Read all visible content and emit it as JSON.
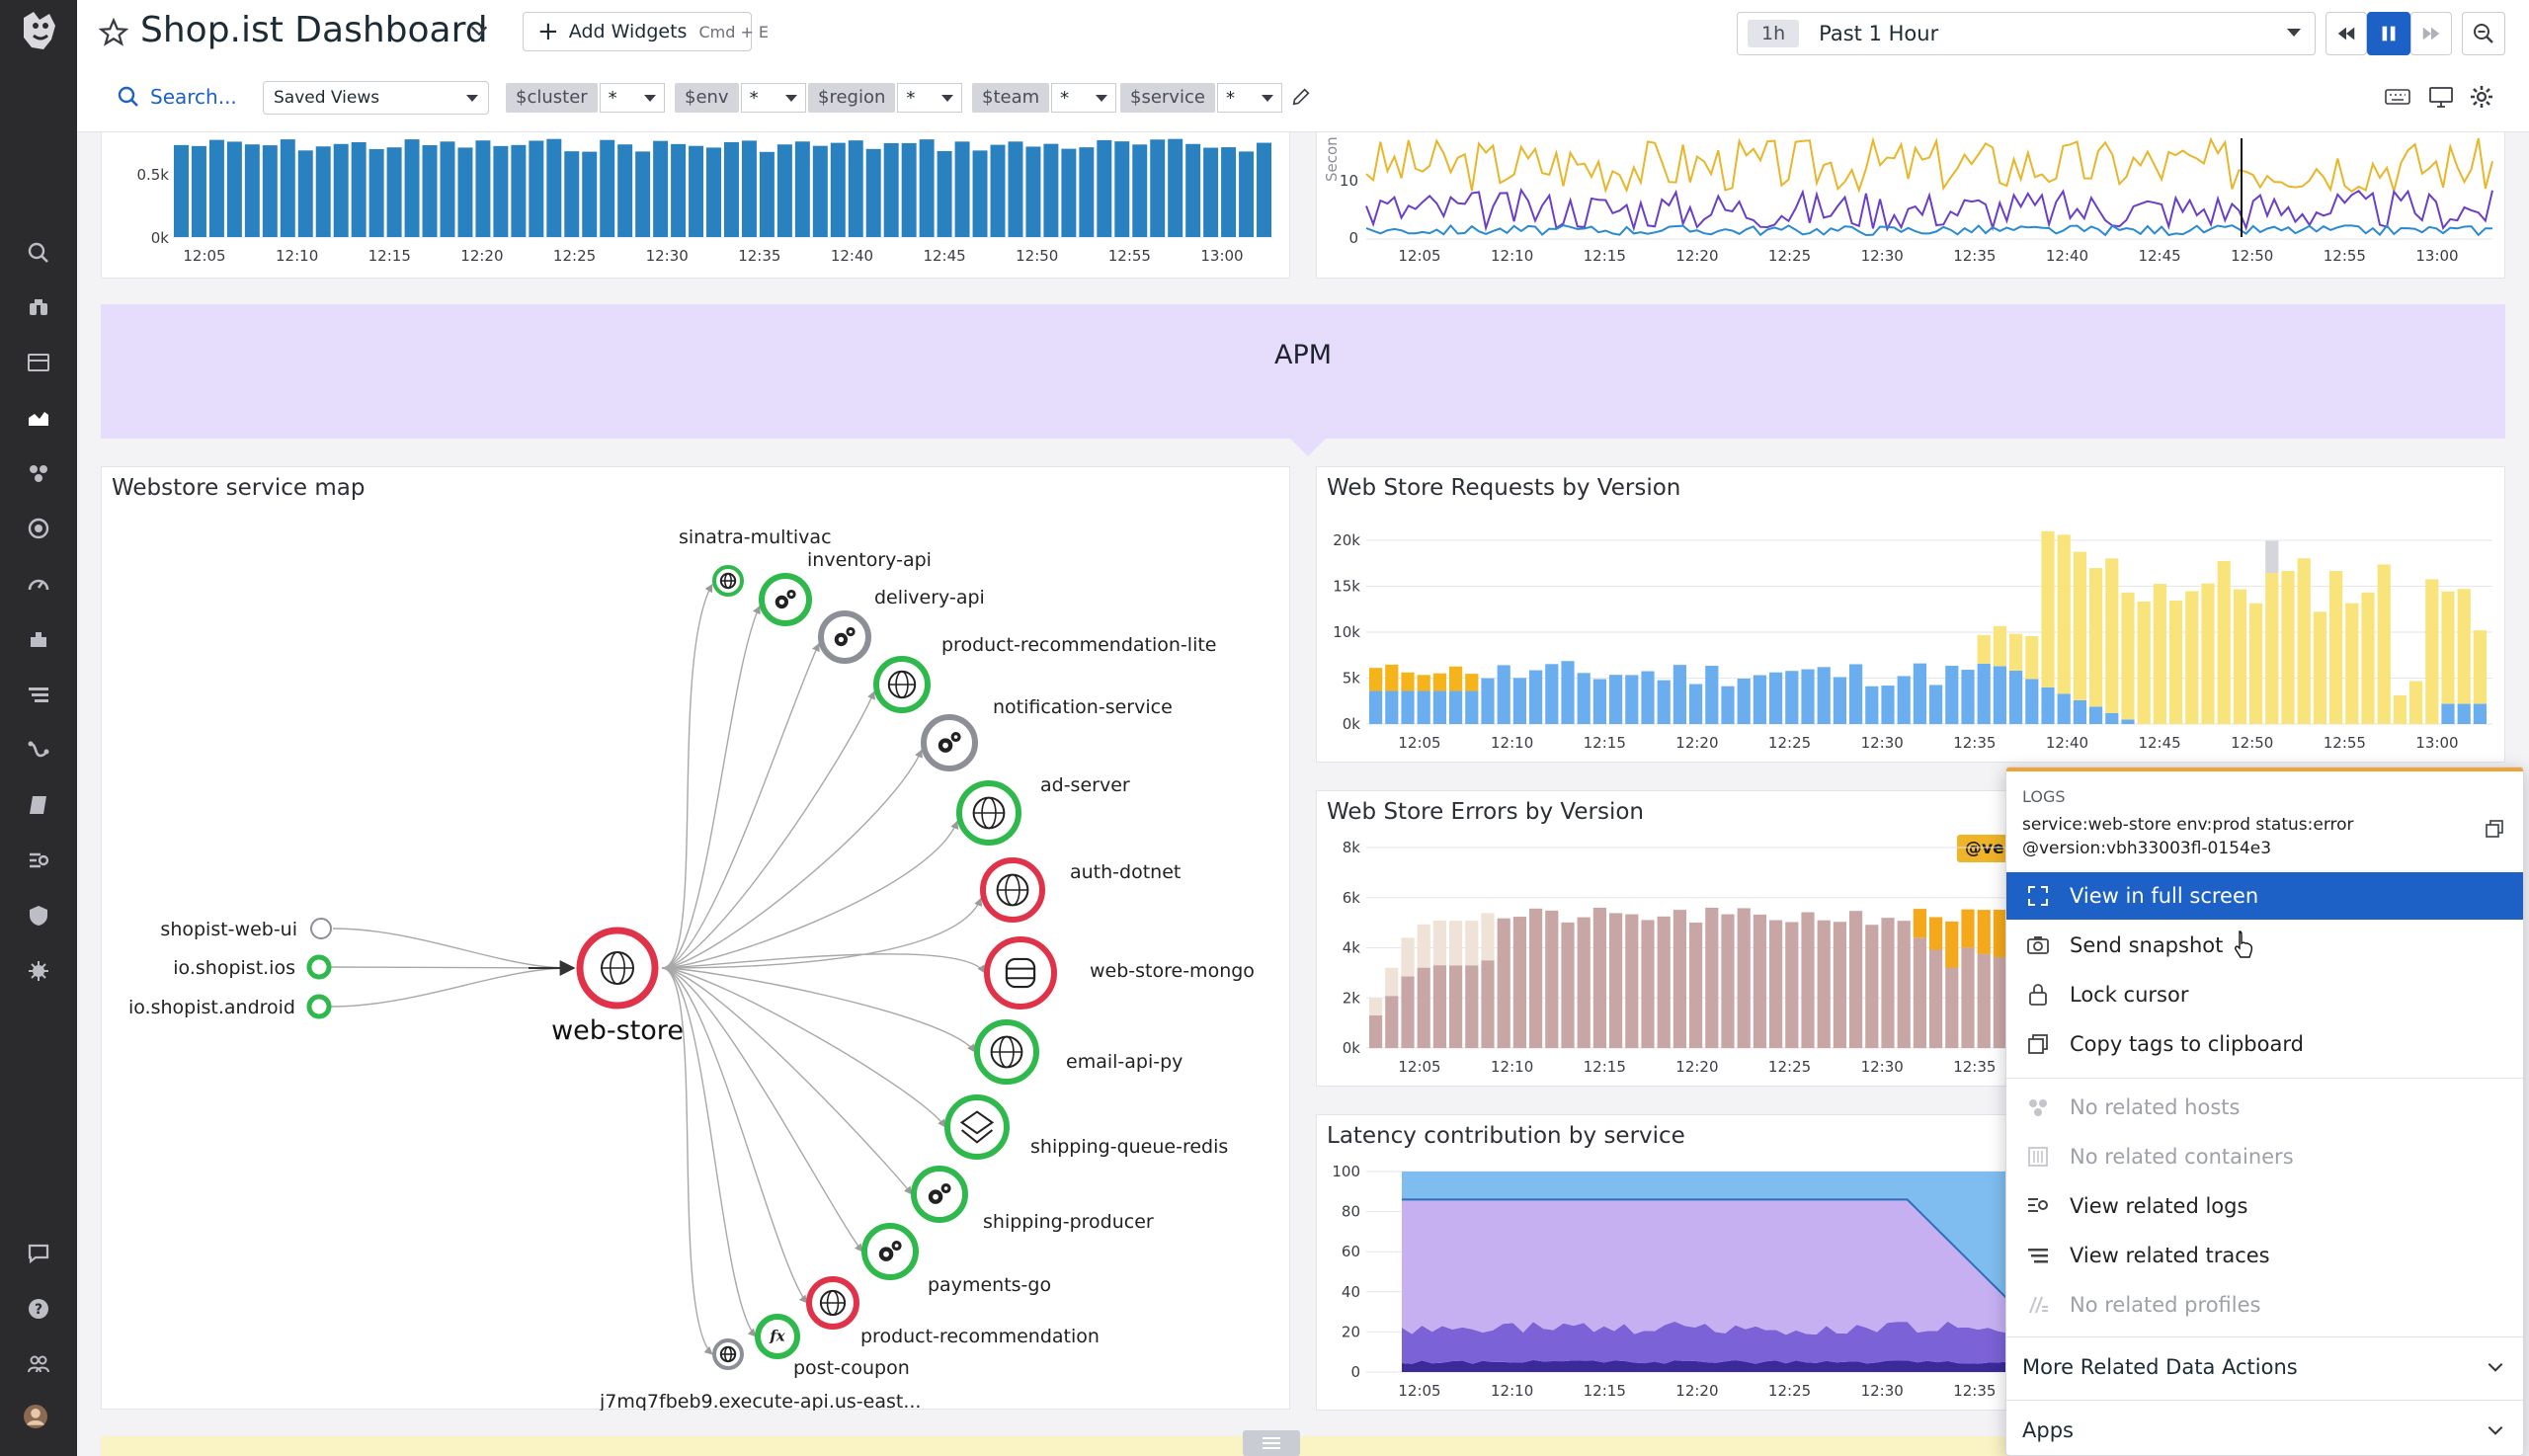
{
  "header": {
    "title": "Shop.ist Dashboard",
    "add_widgets": "Add Widgets",
    "add_widgets_shortcut": "Cmd + E",
    "time_badge": "1h",
    "time_label": "Past 1 Hour",
    "search_placeholder": "Search...",
    "saved_views": "Saved Views"
  },
  "template_vars": [
    {
      "name": "$cluster",
      "value": "*"
    },
    {
      "name": "$env",
      "value": "*"
    },
    {
      "name": "$region",
      "value": "*"
    },
    {
      "name": "$team",
      "value": "*"
    },
    {
      "name": "$service",
      "value": "*"
    }
  ],
  "apm_group": {
    "title": "APM"
  },
  "time_ticks": [
    "12:05",
    "12:10",
    "12:15",
    "12:20",
    "12:25",
    "12:30",
    "12:35",
    "12:40",
    "12:45",
    "12:50",
    "12:55",
    "13:00"
  ],
  "top_left_chart": {
    "yticks": [
      "0.5k",
      "0k"
    ]
  },
  "top_right_chart": {
    "yticks": [
      "10",
      "0"
    ],
    "ylabel": "Secon"
  },
  "service_map": {
    "title": "Webstore service map",
    "center": "web-store",
    "upstream": [
      "shopist-web-ui",
      "io.shopist.ios",
      "io.shopist.android"
    ],
    "downstream": [
      {
        "name": "sinatra-multivac",
        "icon": "globe",
        "status": "ok"
      },
      {
        "name": "inventory-api",
        "icon": "gears",
        "status": "ok"
      },
      {
        "name": "delivery-api",
        "icon": "gears",
        "status": "neutral"
      },
      {
        "name": "product-recommendation-lite",
        "icon": "globe",
        "status": "ok"
      },
      {
        "name": "notification-service",
        "icon": "gears",
        "status": "neutral"
      },
      {
        "name": "ad-server",
        "icon": "globe",
        "status": "ok"
      },
      {
        "name": "auth-dotnet",
        "icon": "globe",
        "status": "error"
      },
      {
        "name": "web-store-mongo",
        "icon": "database",
        "status": "error"
      },
      {
        "name": "email-api-py",
        "icon": "globe",
        "status": "ok"
      },
      {
        "name": "shipping-queue-redis",
        "icon": "layers",
        "status": "ok"
      },
      {
        "name": "shipping-producer",
        "icon": "gears",
        "status": "ok"
      },
      {
        "name": "payments-go",
        "icon": "gears",
        "status": "ok"
      },
      {
        "name": "product-recommendation",
        "icon": "globe",
        "status": "error"
      },
      {
        "name": "post-coupon",
        "icon": "function",
        "status": "ok"
      },
      {
        "name": "j7mq7fbeb9.execute-api.us-east...",
        "icon": "globe",
        "status": "neutral"
      }
    ]
  },
  "requests_chart": {
    "title": "Web Store Requests by Version",
    "yticks": [
      "20k",
      "15k",
      "10k",
      "5k",
      "0k"
    ]
  },
  "errors_chart": {
    "title": "Web Store Errors by Version",
    "yticks": [
      "8k",
      "6k",
      "4k",
      "2k",
      "0k"
    ],
    "tag": "@ver"
  },
  "latency_chart": {
    "title": "Latency contribution by service",
    "yticks": [
      "100",
      "80",
      "60",
      "40",
      "20",
      "0"
    ]
  },
  "colors": {
    "accent": "#1e61c6",
    "ok": "#2fb84b",
    "error": "#e0334a",
    "apm_band": "#e6dcfb",
    "bar_blue": "#2a81bf"
  },
  "context_menu": {
    "section_label": "LOGS",
    "query": "service:web-store env:prod status:error @version:vbh33003fl-0154e3",
    "items": [
      {
        "label": "View in full screen",
        "icon": "expand-icon",
        "state": "selected"
      },
      {
        "label": "Send snapshot",
        "icon": "camera-icon",
        "state": "enabled"
      },
      {
        "label": "Lock cursor",
        "icon": "lock-icon",
        "state": "enabled"
      },
      {
        "label": "Copy tags to clipboard",
        "icon": "copy-icon",
        "state": "enabled"
      },
      {
        "label": "No related hosts",
        "icon": "hosts-icon",
        "state": "disabled"
      },
      {
        "label": "No related containers",
        "icon": "containers-icon",
        "state": "disabled"
      },
      {
        "label": "View related logs",
        "icon": "logs-icon",
        "state": "enabled"
      },
      {
        "label": "View related traces",
        "icon": "traces-icon",
        "state": "enabled"
      },
      {
        "label": "No related profiles",
        "icon": "profiles-icon",
        "state": "disabled"
      }
    ],
    "more_actions": "More Related Data Actions",
    "apps": "Apps"
  }
}
